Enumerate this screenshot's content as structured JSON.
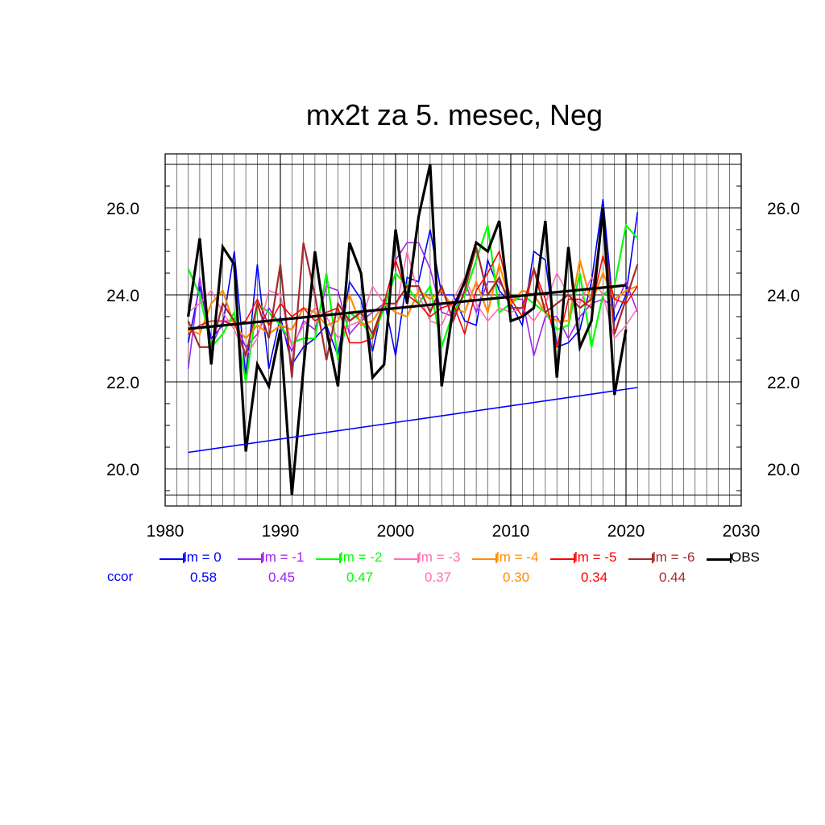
{
  "chart_data": {
    "type": "line",
    "title": "mx2t za 5. mesec, Neg",
    "xlabel": "",
    "ylabel": "",
    "xlim": [
      1980,
      2030
    ],
    "ylim": [
      19.4,
      27.0
    ],
    "x_ticks": [
      1980,
      1990,
      2000,
      2010,
      2020,
      2030
    ],
    "x_tick_labels": [
      "1980",
      "1990",
      "2000",
      "2010",
      "2020",
      "2030"
    ],
    "y_ticks": [
      20.0,
      22.0,
      24.0,
      26.0
    ],
    "y_tick_labels": [
      "20.0",
      "22.0",
      "24.0",
      "26.0"
    ],
    "grid": true,
    "legend_position": "bottom",
    "x": [
      1982,
      1983,
      1984,
      1985,
      1986,
      1987,
      1988,
      1989,
      1990,
      1991,
      1992,
      1993,
      1994,
      1995,
      1996,
      1997,
      1998,
      1999,
      2000,
      2001,
      2002,
      2003,
      2004,
      2005,
      2006,
      2007,
      2008,
      2009,
      2010,
      2011,
      2012,
      2013,
      2014,
      2015,
      2016,
      2017,
      2018,
      2019,
      2020,
      2021
    ],
    "series": [
      {
        "name": "lm = 0",
        "color": "#0000ff",
        "width": 1.6,
        "values": [
          22.9,
          24.2,
          23.0,
          23.3,
          25.0,
          22.1,
          24.7,
          22.3,
          23.5,
          22.4,
          22.8,
          23.0,
          23.3,
          22.6,
          24.3,
          23.9,
          22.7,
          23.9,
          22.6,
          24.4,
          24.3,
          25.5,
          24.0,
          24.0,
          23.4,
          23.3,
          24.8,
          24.1,
          23.8,
          23.3,
          25.0,
          24.8,
          22.8,
          22.9,
          23.2,
          24.3,
          26.2,
          23.4,
          24.0,
          25.9
        ]
      },
      {
        "name": "lm = -1",
        "color": "#a020f0",
        "width": 1.6,
        "values": [
          22.3,
          24.4,
          22.8,
          23.4,
          23.4,
          22.8,
          23.1,
          23.7,
          23.3,
          22.7,
          23.4,
          23.2,
          24.2,
          24.1,
          23.1,
          23.4,
          23.6,
          23.8,
          24.8,
          25.2,
          25.2,
          24.6,
          23.6,
          23.5,
          24.3,
          23.6,
          24.3,
          24.3,
          23.9,
          23.9,
          22.6,
          23.5,
          23.5,
          23.0,
          23.5,
          23.8,
          23.9,
          23.7,
          24.3,
          23.6
        ]
      },
      {
        "name": "lm = -2",
        "color": "#00ff00",
        "width": 2.2,
        "values": [
          24.6,
          24.0,
          22.8,
          23.1,
          23.6,
          22.0,
          23.8,
          23.6,
          23.3,
          22.9,
          23.0,
          23.0,
          24.5,
          22.5,
          23.6,
          23.4,
          23.0,
          23.7,
          24.5,
          24.2,
          23.8,
          24.2,
          22.8,
          23.6,
          24.0,
          24.8,
          25.6,
          23.6,
          23.8,
          24.0,
          23.8,
          23.6,
          23.2,
          23.3,
          24.5,
          22.8,
          24.0,
          24.2,
          25.6,
          25.3
        ]
      },
      {
        "name": "lm = -3",
        "color": "#ff6eb4",
        "width": 1.6,
        "values": [
          23.6,
          23.8,
          24.1,
          23.6,
          23.2,
          22.6,
          23.0,
          24.1,
          24.0,
          22.8,
          23.3,
          23.7,
          23.5,
          23.0,
          23.3,
          23.4,
          24.2,
          23.8,
          23.6,
          25.0,
          24.0,
          23.4,
          23.3,
          23.9,
          24.4,
          23.8,
          23.4,
          23.7,
          23.6,
          23.7,
          23.4,
          23.8,
          24.5,
          24.0,
          23.8,
          24.4,
          24.0,
          23.0,
          23.3,
          23.7
        ]
      },
      {
        "name": "lm = -4",
        "color": "#ff8c00",
        "width": 2.2,
        "values": [
          23.2,
          23.1,
          23.8,
          24.1,
          23.3,
          23.0,
          23.3,
          23.1,
          23.3,
          23.2,
          23.7,
          23.6,
          23.3,
          23.4,
          24.0,
          23.3,
          23.4,
          23.8,
          23.6,
          23.5,
          24.1,
          23.9,
          24.1,
          23.7,
          23.6,
          24.3,
          23.6,
          24.7,
          23.8,
          24.1,
          24.0,
          23.6,
          23.4,
          23.4,
          24.8,
          23.8,
          24.5,
          23.9,
          24.1,
          24.2
        ]
      },
      {
        "name": "lm = -5",
        "color": "#ff0000",
        "width": 1.6,
        "values": [
          23.1,
          23.3,
          23.4,
          23.4,
          23.3,
          23.4,
          23.9,
          23.3,
          23.8,
          23.5,
          23.7,
          23.4,
          23.6,
          23.7,
          22.9,
          22.9,
          23.0,
          23.8,
          24.8,
          24.0,
          23.8,
          23.5,
          23.7,
          23.8,
          23.1,
          24.1,
          24.5,
          25.0,
          23.9,
          23.5,
          24.6,
          23.9,
          22.8,
          23.9,
          23.9,
          23.7,
          24.9,
          23.9,
          23.8,
          24.2
        ]
      },
      {
        "name": "lm = -6",
        "color": "#a52a2a",
        "width": 2.2,
        "values": [
          23.4,
          22.8,
          22.8,
          23.8,
          23.4,
          22.6,
          23.8,
          23.0,
          24.7,
          22.1,
          25.2,
          24.0,
          22.5,
          23.8,
          23.4,
          23.6,
          23.1,
          23.8,
          23.8,
          24.2,
          24.2,
          23.6,
          24.2,
          23.4,
          24.1,
          25.1,
          24.0,
          24.4,
          23.7,
          23.7,
          24.6,
          23.6,
          23.8,
          24.0,
          23.7,
          23.9,
          25.8,
          23.1,
          23.9,
          24.7
        ]
      },
      {
        "name": "OBS",
        "color": "#000000",
        "width": 3.2,
        "values": [
          23.5,
          25.3,
          22.4,
          25.1,
          24.7,
          20.4,
          22.4,
          21.9,
          23.2,
          19.4,
          22.3,
          25.0,
          23.2,
          21.9,
          25.2,
          24.5,
          22.1,
          22.4,
          25.5,
          23.8,
          25.8,
          27.0,
          21.9,
          23.7,
          24.3,
          25.2,
          25.0,
          25.7,
          23.4,
          23.5,
          23.7,
          25.7,
          22.1,
          25.1,
          22.8,
          23.4,
          26.0,
          21.7,
          23.2,
          null
        ]
      }
    ],
    "trend_lines": [
      {
        "color": "#0000ff",
        "width": 1.6,
        "x": [
          1982,
          2021
        ],
        "y": [
          20.38,
          21.87
        ]
      },
      {
        "color": "#000000",
        "width": 3.2,
        "x": [
          1982,
          2020
        ],
        "y": [
          23.22,
          24.22
        ]
      }
    ],
    "ccor_label": "ccor",
    "ccor_color": "#0000ff",
    "ccor_values": [
      "0.58",
      "0.45",
      "0.47",
      "0.37",
      "0.30",
      "0.34",
      "0.44"
    ]
  }
}
